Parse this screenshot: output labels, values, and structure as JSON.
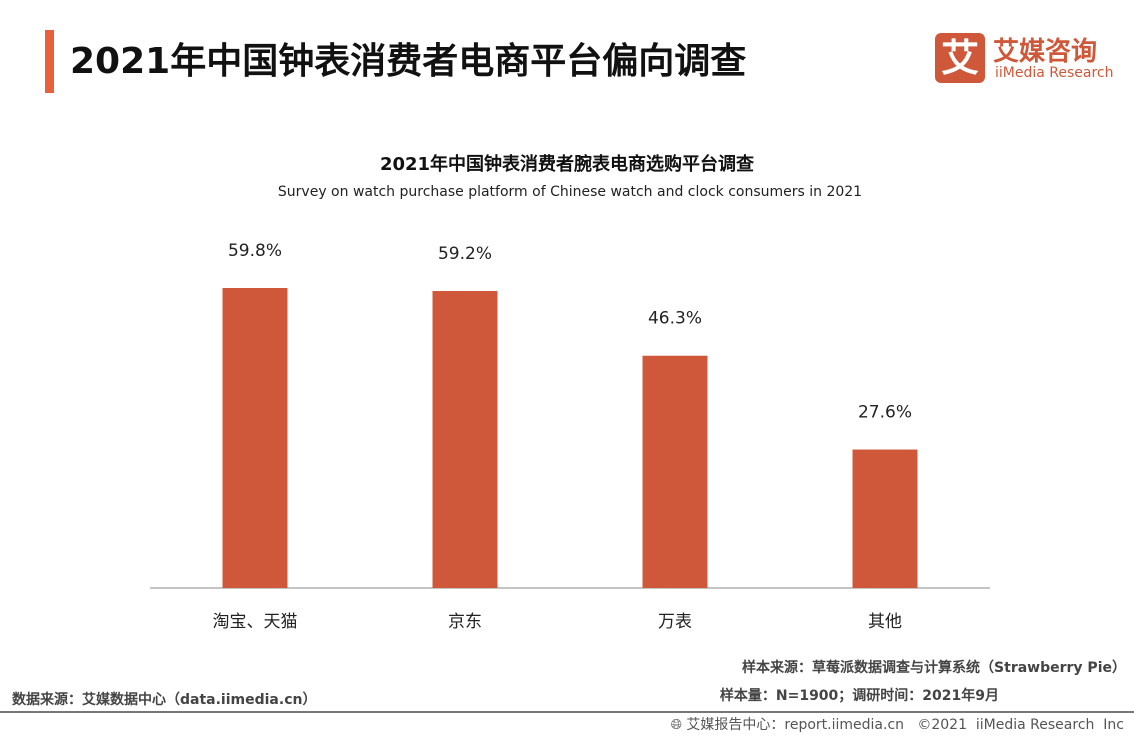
{
  "header": {
    "title": "2021年中国钟表消费者电商平台偏向调查",
    "logo": {
      "mark": "艾",
      "cn": "艾媒咨询",
      "en": "iiMedia Research"
    }
  },
  "chart_data": {
    "type": "bar",
    "title": "2021年中国钟表消费者腕表电商选购平台调查",
    "subtitle": "Survey on watch purchase platform of Chinese watch  and clock consumers in 2021",
    "categories": [
      "淘宝、天猫",
      "京东",
      "万表",
      "其他"
    ],
    "values": [
      59.8,
      59.2,
      46.3,
      27.6
    ],
    "data_labels": [
      "59.8%",
      "59.2%",
      "46.3%",
      "27.6%"
    ],
    "unit": "%",
    "ylim": [
      0,
      60
    ],
    "grid": false,
    "bar_color": "#D0583A"
  },
  "notes": {
    "sample_source": "样本来源：草莓派数据调查与计算系统（Strawberry Pie）",
    "sample_size": "样本量：N=1900；调研时间：2021年9月",
    "data_source": "数据来源：艾媒数据中心（data.iimedia.cn）"
  },
  "footer": {
    "text": "艾媒报告中心：report.iimedia.cn   ©2021  iiMedia Research  Inc"
  },
  "colors": {
    "accent": "#E8603C",
    "brand": "#D0583A"
  }
}
